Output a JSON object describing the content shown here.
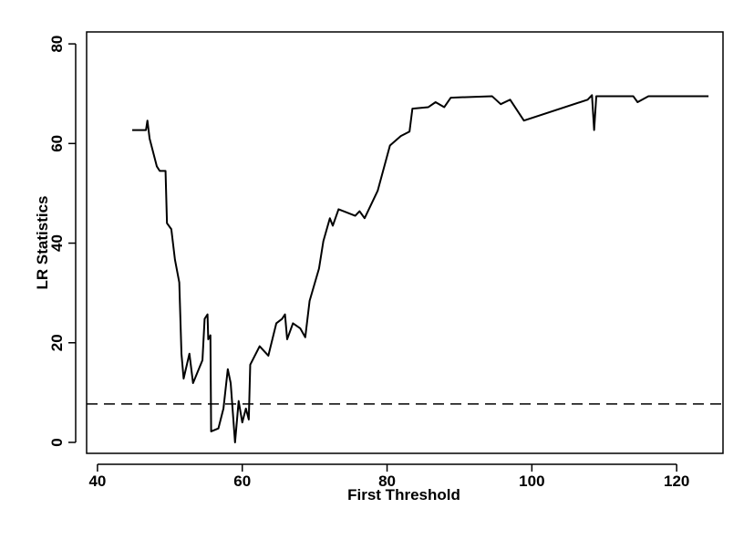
{
  "chart_data": {
    "type": "line",
    "x_label": "First Threshold",
    "y_label": "LR Statistics",
    "x": [
      44.8,
      46.7,
      46.9,
      47.2,
      48.2,
      48.6,
      49.4,
      49.6,
      50.2,
      50.7,
      51.3,
      51.6,
      51.9,
      52.7,
      53.2,
      54.5,
      54.8,
      55.2,
      55.3,
      55.6,
      55.7,
      56.7,
      57.4,
      58,
      58.4,
      59,
      59.5,
      60,
      60.5,
      60.9,
      61.1,
      62.4,
      63.6,
      64.7,
      65.5,
      65.9,
      66.2,
      67,
      68,
      68.7,
      69.3,
      70.6,
      71.2,
      72.1,
      72.5,
      73.3,
      75.6,
      76.2,
      76.9,
      78.7,
      80.4,
      81.9,
      83.1,
      83.5,
      85.7,
      86.7,
      87.9,
      88.8,
      94.5,
      95.7,
      97,
      98.9,
      107.7,
      108.3,
      108.6,
      108.9,
      114,
      114.6,
      116.1,
      124.4
    ],
    "series": [
      {
        "color": "#000000",
        "values": [
          62.7,
          62.7,
          64.6,
          61,
          55.4,
          54.5,
          54.5,
          44,
          42.8,
          36.7,
          32.1,
          17.8,
          12.8,
          17.8,
          11.9,
          16.5,
          24.8,
          25.7,
          20.7,
          21.5,
          2.2,
          2.8,
          6.8,
          14.7,
          11.9,
          0,
          8.3,
          4,
          6.8,
          4.6,
          15.6,
          19.3,
          17.4,
          23.9,
          24.8,
          25.7,
          20.7,
          23.9,
          22.9,
          21.1,
          28.4,
          34.9,
          40.4,
          45,
          43.5,
          46.8,
          45.5,
          46.4,
          45,
          50.5,
          59.6,
          61.5,
          62.4,
          67,
          67.3,
          68.3,
          67.3,
          69.2,
          69.5,
          67.9,
          68.8,
          64.6,
          68.8,
          69.7,
          62.7,
          69.5,
          69.5,
          68.3,
          69.5,
          69.5
        ]
      }
    ],
    "hline": 7.7,
    "xlim": [
      38.5,
      126.4
    ],
    "ylim": [
      -2.2,
      82.4
    ],
    "xticks": [
      40,
      60,
      80,
      100,
      120
    ],
    "yticks": [
      0,
      20,
      40,
      60,
      80
    ]
  }
}
